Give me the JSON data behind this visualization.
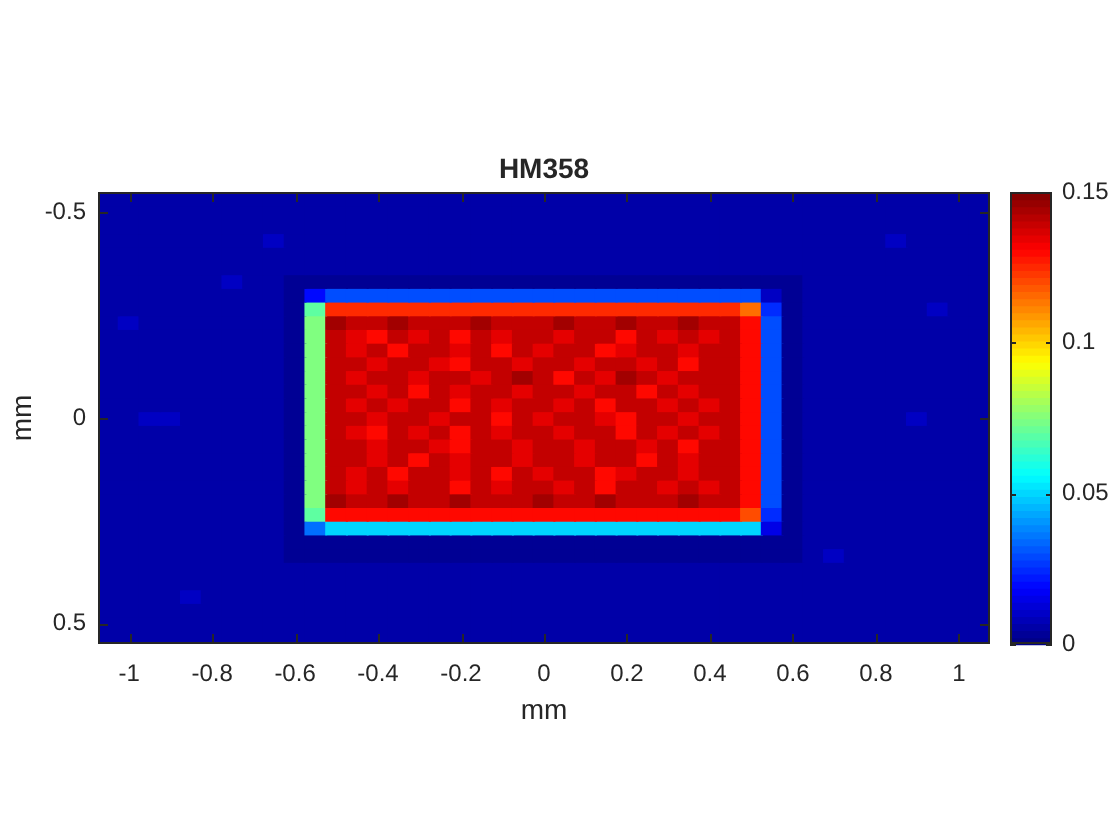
{
  "chart_data": {
    "type": "heatmap",
    "title": "HM358",
    "xlabel": "mm",
    "ylabel": "mm",
    "categories": [
      null,
      "-1",
      null,
      null,
      null,
      "-0.8",
      null,
      null,
      null,
      "-0.6",
      null,
      null,
      null,
      "-0.4",
      null,
      null,
      null,
      "-0.2",
      null,
      null,
      null,
      "0",
      null,
      null,
      null,
      "0.2",
      null,
      null,
      null,
      "0.4",
      null,
      null,
      null,
      "0.6",
      null,
      null,
      null,
      "0.8",
      null,
      null,
      null,
      "1",
      null
    ],
    "y_categories": [
      null,
      "-0.5",
      null,
      null,
      null,
      null,
      null,
      null,
      null,
      null,
      null,
      null,
      null,
      null,
      null,
      null,
      "0",
      null,
      null,
      null,
      null,
      null,
      null,
      null,
      null,
      null,
      null,
      null,
      null,
      null,
      null,
      "0.5",
      null
    ],
    "cells": [
      [
        0.006,
        0.006,
        0.006,
        0.006,
        0.006,
        0.006,
        0.006,
        0.006,
        0.006,
        0.006,
        0.006,
        0.006,
        0.006,
        0.006,
        0.006,
        0.006,
        0.006,
        0.006,
        0.006,
        0.006,
        0.006,
        0.006,
        0.006,
        0.006,
        0.006,
        0.006,
        0.006,
        0.006,
        0.006,
        0.006,
        0.006,
        0.006,
        0.006,
        0.006,
        0.006,
        0.006,
        0.006,
        0.006,
        0.006,
        0.006,
        0.006,
        0.006,
        0.006
      ],
      [
        0.006,
        0.006,
        0.006,
        0.006,
        0.006,
        0.006,
        0.006,
        0.006,
        0.006,
        0.006,
        0.006,
        0.006,
        0.006,
        0.006,
        0.006,
        0.006,
        0.006,
        0.006,
        0.006,
        0.006,
        0.006,
        0.006,
        0.006,
        0.006,
        0.006,
        0.006,
        0.006,
        0.006,
        0.006,
        0.006,
        0.006,
        0.006,
        0.006,
        0.006,
        0.006,
        0.006,
        0.006,
        0.006,
        0.006,
        0.006,
        0.006,
        0.006,
        0.006
      ],
      [
        0.006,
        0.006,
        0.006,
        0.006,
        0.006,
        0.006,
        0.006,
        0.006,
        0.006,
        0.006,
        0.006,
        0.006,
        0.006,
        0.006,
        0.006,
        0.006,
        0.006,
        0.006,
        0.006,
        0.006,
        0.006,
        0.006,
        0.006,
        0.006,
        0.006,
        0.006,
        0.006,
        0.006,
        0.006,
        0.006,
        0.006,
        0.006,
        0.006,
        0.006,
        0.006,
        0.006,
        0.006,
        0.006,
        0.006,
        0.006,
        0.006,
        0.006,
        0.006
      ],
      [
        0.006,
        0.006,
        0.006,
        0.006,
        0.006,
        0.006,
        0.006,
        0.006,
        0.01,
        0.006,
        0.006,
        0.006,
        0.006,
        0.006,
        0.006,
        0.006,
        0.006,
        0.006,
        0.006,
        0.006,
        0.006,
        0.006,
        0.006,
        0.006,
        0.006,
        0.006,
        0.006,
        0.006,
        0.006,
        0.006,
        0.006,
        0.006,
        0.006,
        0.006,
        0.006,
        0.006,
        0.006,
        0.006,
        0.01,
        0.006,
        0.006,
        0.006,
        0.006
      ],
      [
        0.006,
        0.006,
        0.006,
        0.006,
        0.006,
        0.006,
        0.006,
        0.006,
        0.006,
        0.006,
        0.006,
        0.006,
        0.006,
        0.006,
        0.006,
        0.006,
        0.006,
        0.006,
        0.006,
        0.006,
        0.006,
        0.006,
        0.006,
        0.006,
        0.006,
        0.006,
        0.006,
        0.006,
        0.006,
        0.006,
        0.006,
        0.006,
        0.006,
        0.006,
        0.006,
        0.006,
        0.006,
        0.006,
        0.006,
        0.006,
        0.006,
        0.006,
        0.006
      ],
      [
        0.006,
        0.006,
        0.006,
        0.006,
        0.006,
        0.006,
        0.006,
        0.006,
        0.006,
        0.006,
        0.006,
        0.006,
        0.006,
        0.006,
        0.006,
        0.006,
        0.006,
        0.006,
        0.006,
        0.006,
        0.006,
        0.006,
        0.006,
        0.006,
        0.006,
        0.006,
        0.006,
        0.006,
        0.006,
        0.006,
        0.006,
        0.006,
        0.006,
        0.006,
        0.006,
        0.006,
        0.006,
        0.006,
        0.006,
        0.006,
        0.006,
        0.006,
        0.006
      ],
      [
        0.006,
        0.006,
        0.006,
        0.006,
        0.006,
        0.006,
        0.01,
        0.006,
        0.006,
        0.003,
        0.003,
        0.003,
        0.003,
        0.003,
        0.003,
        0.003,
        0.003,
        0.003,
        0.003,
        0.003,
        0.003,
        0.003,
        0.003,
        0.003,
        0.003,
        0.003,
        0.003,
        0.003,
        0.003,
        0.003,
        0.003,
        0.003,
        0.003,
        0.003,
        0.006,
        0.006,
        0.006,
        0.006,
        0.006,
        0.006,
        0.006,
        0.006,
        0.006
      ],
      [
        0.006,
        0.006,
        0.006,
        0.006,
        0.006,
        0.006,
        0.006,
        0.006,
        0.006,
        0.003,
        0.02,
        0.03,
        0.03,
        0.03,
        0.03,
        0.03,
        0.03,
        0.03,
        0.03,
        0.03,
        0.03,
        0.03,
        0.03,
        0.03,
        0.03,
        0.03,
        0.03,
        0.03,
        0.03,
        0.03,
        0.03,
        0.03,
        0.01,
        0.003,
        0.006,
        0.006,
        0.006,
        0.006,
        0.006,
        0.006,
        0.006,
        0.006,
        0.006
      ],
      [
        0.006,
        0.006,
        0.006,
        0.006,
        0.006,
        0.006,
        0.006,
        0.006,
        0.006,
        0.003,
        0.07,
        0.125,
        0.125,
        0.125,
        0.125,
        0.125,
        0.125,
        0.125,
        0.125,
        0.125,
        0.125,
        0.125,
        0.125,
        0.125,
        0.125,
        0.125,
        0.125,
        0.125,
        0.125,
        0.125,
        0.125,
        0.115,
        0.025,
        0.003,
        0.006,
        0.006,
        0.006,
        0.006,
        0.006,
        0.006,
        0.01,
        0.006,
        0.006
      ],
      [
        0.006,
        0.01,
        0.006,
        0.006,
        0.006,
        0.006,
        0.006,
        0.006,
        0.006,
        0.003,
        0.075,
        0.145,
        0.14,
        0.14,
        0.145,
        0.14,
        0.14,
        0.14,
        0.145,
        0.14,
        0.14,
        0.14,
        0.145,
        0.14,
        0.14,
        0.145,
        0.14,
        0.14,
        0.145,
        0.14,
        0.14,
        0.13,
        0.03,
        0.003,
        0.006,
        0.006,
        0.006,
        0.006,
        0.006,
        0.006,
        0.006,
        0.006,
        0.006
      ],
      [
        0.006,
        0.006,
        0.006,
        0.006,
        0.006,
        0.006,
        0.006,
        0.006,
        0.006,
        0.003,
        0.075,
        0.14,
        0.135,
        0.13,
        0.14,
        0.135,
        0.14,
        0.13,
        0.14,
        0.135,
        0.14,
        0.14,
        0.135,
        0.14,
        0.14,
        0.13,
        0.14,
        0.135,
        0.14,
        0.135,
        0.14,
        0.13,
        0.03,
        0.003,
        0.006,
        0.006,
        0.006,
        0.006,
        0.006,
        0.006,
        0.006,
        0.006,
        0.006
      ],
      [
        0.006,
        0.006,
        0.006,
        0.006,
        0.006,
        0.006,
        0.006,
        0.006,
        0.006,
        0.003,
        0.075,
        0.14,
        0.135,
        0.14,
        0.13,
        0.14,
        0.14,
        0.135,
        0.14,
        0.13,
        0.14,
        0.135,
        0.14,
        0.14,
        0.13,
        0.135,
        0.14,
        0.14,
        0.135,
        0.14,
        0.14,
        0.13,
        0.03,
        0.003,
        0.006,
        0.006,
        0.006,
        0.006,
        0.006,
        0.006,
        0.006,
        0.006,
        0.006
      ],
      [
        0.006,
        0.006,
        0.006,
        0.006,
        0.006,
        0.006,
        0.006,
        0.006,
        0.006,
        0.003,
        0.075,
        0.14,
        0.14,
        0.135,
        0.14,
        0.14,
        0.135,
        0.13,
        0.14,
        0.14,
        0.135,
        0.14,
        0.14,
        0.135,
        0.14,
        0.14,
        0.135,
        0.14,
        0.13,
        0.14,
        0.14,
        0.13,
        0.03,
        0.003,
        0.006,
        0.006,
        0.006,
        0.006,
        0.006,
        0.006,
        0.006,
        0.006,
        0.006
      ],
      [
        0.006,
        0.006,
        0.006,
        0.006,
        0.006,
        0.006,
        0.006,
        0.006,
        0.006,
        0.003,
        0.075,
        0.14,
        0.135,
        0.14,
        0.14,
        0.135,
        0.14,
        0.14,
        0.135,
        0.14,
        0.145,
        0.14,
        0.13,
        0.14,
        0.135,
        0.145,
        0.14,
        0.135,
        0.14,
        0.14,
        0.14,
        0.13,
        0.03,
        0.003,
        0.006,
        0.006,
        0.006,
        0.006,
        0.006,
        0.006,
        0.006,
        0.006,
        0.006
      ],
      [
        0.006,
        0.006,
        0.006,
        0.006,
        0.006,
        0.006,
        0.006,
        0.006,
        0.006,
        0.003,
        0.075,
        0.14,
        0.14,
        0.135,
        0.14,
        0.13,
        0.14,
        0.135,
        0.14,
        0.14,
        0.135,
        0.14,
        0.14,
        0.135,
        0.14,
        0.14,
        0.13,
        0.14,
        0.135,
        0.14,
        0.14,
        0.13,
        0.03,
        0.003,
        0.006,
        0.006,
        0.006,
        0.006,
        0.006,
        0.006,
        0.006,
        0.006,
        0.006
      ],
      [
        0.006,
        0.006,
        0.006,
        0.006,
        0.006,
        0.006,
        0.006,
        0.006,
        0.006,
        0.003,
        0.075,
        0.14,
        0.135,
        0.14,
        0.135,
        0.14,
        0.14,
        0.13,
        0.14,
        0.135,
        0.14,
        0.14,
        0.135,
        0.14,
        0.13,
        0.14,
        0.14,
        0.135,
        0.14,
        0.135,
        0.14,
        0.13,
        0.03,
        0.003,
        0.006,
        0.006,
        0.006,
        0.006,
        0.006,
        0.006,
        0.006,
        0.006,
        0.006
      ],
      [
        0.006,
        0.006,
        0.01,
        0.01,
        0.006,
        0.006,
        0.006,
        0.006,
        0.006,
        0.003,
        0.075,
        0.14,
        0.14,
        0.135,
        0.14,
        0.14,
        0.135,
        0.14,
        0.14,
        0.13,
        0.14,
        0.135,
        0.14,
        0.14,
        0.135,
        0.13,
        0.14,
        0.14,
        0.135,
        0.14,
        0.14,
        0.13,
        0.03,
        0.003,
        0.006,
        0.006,
        0.006,
        0.006,
        0.006,
        0.01,
        0.006,
        0.006,
        0.006
      ],
      [
        0.006,
        0.006,
        0.006,
        0.006,
        0.006,
        0.006,
        0.006,
        0.006,
        0.006,
        0.003,
        0.075,
        0.14,
        0.135,
        0.13,
        0.14,
        0.135,
        0.14,
        0.13,
        0.14,
        0.135,
        0.14,
        0.14,
        0.135,
        0.14,
        0.14,
        0.13,
        0.14,
        0.135,
        0.14,
        0.135,
        0.14,
        0.13,
        0.03,
        0.003,
        0.006,
        0.006,
        0.006,
        0.006,
        0.006,
        0.006,
        0.006,
        0.006,
        0.006
      ],
      [
        0.006,
        0.006,
        0.006,
        0.006,
        0.006,
        0.006,
        0.006,
        0.006,
        0.006,
        0.003,
        0.075,
        0.14,
        0.14,
        0.135,
        0.14,
        0.14,
        0.135,
        0.13,
        0.14,
        0.14,
        0.135,
        0.14,
        0.14,
        0.135,
        0.14,
        0.14,
        0.135,
        0.14,
        0.13,
        0.14,
        0.14,
        0.13,
        0.03,
        0.003,
        0.006,
        0.006,
        0.006,
        0.006,
        0.006,
        0.006,
        0.006,
        0.006,
        0.006
      ],
      [
        0.006,
        0.006,
        0.006,
        0.006,
        0.006,
        0.006,
        0.006,
        0.006,
        0.006,
        0.003,
        0.075,
        0.14,
        0.14,
        0.135,
        0.14,
        0.13,
        0.14,
        0.135,
        0.14,
        0.14,
        0.135,
        0.14,
        0.14,
        0.135,
        0.14,
        0.14,
        0.13,
        0.14,
        0.135,
        0.14,
        0.14,
        0.13,
        0.03,
        0.003,
        0.006,
        0.006,
        0.006,
        0.006,
        0.006,
        0.006,
        0.006,
        0.006,
        0.006
      ],
      [
        0.006,
        0.006,
        0.006,
        0.006,
        0.006,
        0.006,
        0.006,
        0.006,
        0.006,
        0.003,
        0.075,
        0.14,
        0.135,
        0.14,
        0.13,
        0.14,
        0.14,
        0.135,
        0.14,
        0.13,
        0.14,
        0.135,
        0.14,
        0.14,
        0.13,
        0.135,
        0.14,
        0.14,
        0.135,
        0.14,
        0.14,
        0.13,
        0.03,
        0.003,
        0.006,
        0.006,
        0.006,
        0.006,
        0.006,
        0.006,
        0.006,
        0.006,
        0.006
      ],
      [
        0.006,
        0.006,
        0.006,
        0.006,
        0.006,
        0.006,
        0.006,
        0.006,
        0.006,
        0.003,
        0.075,
        0.14,
        0.135,
        0.14,
        0.135,
        0.14,
        0.14,
        0.13,
        0.14,
        0.135,
        0.14,
        0.14,
        0.135,
        0.14,
        0.13,
        0.14,
        0.14,
        0.135,
        0.14,
        0.135,
        0.14,
        0.13,
        0.03,
        0.003,
        0.006,
        0.006,
        0.006,
        0.006,
        0.006,
        0.006,
        0.006,
        0.006,
        0.006
      ],
      [
        0.006,
        0.006,
        0.006,
        0.006,
        0.006,
        0.006,
        0.006,
        0.006,
        0.006,
        0.003,
        0.075,
        0.145,
        0.14,
        0.14,
        0.145,
        0.14,
        0.14,
        0.145,
        0.14,
        0.14,
        0.14,
        0.145,
        0.14,
        0.14,
        0.145,
        0.14,
        0.14,
        0.14,
        0.145,
        0.14,
        0.14,
        0.13,
        0.03,
        0.003,
        0.006,
        0.006,
        0.006,
        0.006,
        0.006,
        0.006,
        0.006,
        0.006,
        0.006
      ],
      [
        0.006,
        0.006,
        0.006,
        0.006,
        0.006,
        0.006,
        0.006,
        0.006,
        0.006,
        0.003,
        0.07,
        0.13,
        0.13,
        0.13,
        0.13,
        0.13,
        0.13,
        0.13,
        0.13,
        0.13,
        0.13,
        0.13,
        0.13,
        0.13,
        0.13,
        0.13,
        0.13,
        0.13,
        0.13,
        0.13,
        0.13,
        0.12,
        0.025,
        0.003,
        0.006,
        0.006,
        0.006,
        0.006,
        0.006,
        0.006,
        0.006,
        0.006,
        0.006
      ],
      [
        0.006,
        0.006,
        0.006,
        0.006,
        0.006,
        0.006,
        0.006,
        0.006,
        0.006,
        0.003,
        0.035,
        0.05,
        0.05,
        0.05,
        0.05,
        0.05,
        0.05,
        0.05,
        0.05,
        0.05,
        0.05,
        0.05,
        0.05,
        0.05,
        0.05,
        0.05,
        0.05,
        0.05,
        0.05,
        0.05,
        0.05,
        0.05,
        0.015,
        0.003,
        0.006,
        0.006,
        0.006,
        0.006,
        0.006,
        0.006,
        0.006,
        0.006,
        0.006
      ],
      [
        0.006,
        0.006,
        0.006,
        0.006,
        0.006,
        0.006,
        0.006,
        0.006,
        0.006,
        0.003,
        0.003,
        0.003,
        0.003,
        0.003,
        0.003,
        0.003,
        0.003,
        0.003,
        0.003,
        0.003,
        0.003,
        0.003,
        0.003,
        0.003,
        0.003,
        0.003,
        0.003,
        0.003,
        0.003,
        0.003,
        0.003,
        0.003,
        0.003,
        0.003,
        0.006,
        0.006,
        0.006,
        0.006,
        0.006,
        0.006,
        0.006,
        0.006,
        0.006
      ],
      [
        0.006,
        0.006,
        0.006,
        0.006,
        0.006,
        0.006,
        0.006,
        0.006,
        0.006,
        0.003,
        0.003,
        0.003,
        0.003,
        0.003,
        0.003,
        0.003,
        0.003,
        0.003,
        0.003,
        0.003,
        0.003,
        0.003,
        0.003,
        0.003,
        0.003,
        0.003,
        0.003,
        0.003,
        0.003,
        0.003,
        0.003,
        0.003,
        0.003,
        0.003,
        0.006,
        0.01,
        0.006,
        0.006,
        0.006,
        0.006,
        0.006,
        0.006,
        0.006
      ],
      [
        0.006,
        0.006,
        0.006,
        0.006,
        0.006,
        0.006,
        0.006,
        0.006,
        0.006,
        0.006,
        0.006,
        0.006,
        0.006,
        0.006,
        0.006,
        0.006,
        0.006,
        0.006,
        0.006,
        0.006,
        0.006,
        0.006,
        0.006,
        0.006,
        0.006,
        0.006,
        0.006,
        0.006,
        0.006,
        0.006,
        0.006,
        0.006,
        0.006,
        0.006,
        0.006,
        0.006,
        0.006,
        0.006,
        0.006,
        0.006,
        0.006,
        0.006,
        0.006
      ],
      [
        0.006,
        0.006,
        0.006,
        0.006,
        0.006,
        0.006,
        0.006,
        0.006,
        0.006,
        0.006,
        0.006,
        0.006,
        0.006,
        0.006,
        0.006,
        0.006,
        0.006,
        0.006,
        0.006,
        0.006,
        0.006,
        0.006,
        0.006,
        0.006,
        0.006,
        0.006,
        0.006,
        0.006,
        0.006,
        0.006,
        0.006,
        0.006,
        0.006,
        0.006,
        0.006,
        0.006,
        0.006,
        0.006,
        0.006,
        0.006,
        0.006,
        0.006,
        0.006
      ],
      [
        0.006,
        0.006,
        0.006,
        0.006,
        0.01,
        0.006,
        0.006,
        0.006,
        0.006,
        0.006,
        0.006,
        0.006,
        0.006,
        0.006,
        0.006,
        0.006,
        0.006,
        0.006,
        0.006,
        0.006,
        0.006,
        0.006,
        0.006,
        0.006,
        0.006,
        0.006,
        0.006,
        0.006,
        0.006,
        0.006,
        0.006,
        0.006,
        0.006,
        0.006,
        0.006,
        0.006,
        0.006,
        0.006,
        0.006,
        0.006,
        0.006,
        0.006,
        0.006
      ],
      [
        0.006,
        0.006,
        0.006,
        0.006,
        0.006,
        0.006,
        0.006,
        0.006,
        0.006,
        0.006,
        0.006,
        0.006,
        0.006,
        0.006,
        0.006,
        0.006,
        0.006,
        0.006,
        0.006,
        0.006,
        0.006,
        0.006,
        0.006,
        0.006,
        0.006,
        0.006,
        0.006,
        0.006,
        0.006,
        0.006,
        0.006,
        0.006,
        0.006,
        0.006,
        0.006,
        0.006,
        0.006,
        0.006,
        0.006,
        0.006,
        0.006,
        0.006,
        0.006
      ],
      [
        0.006,
        0.006,
        0.006,
        0.006,
        0.006,
        0.006,
        0.006,
        0.006,
        0.006,
        0.006,
        0.006,
        0.006,
        0.006,
        0.006,
        0.006,
        0.006,
        0.006,
        0.006,
        0.006,
        0.006,
        0.006,
        0.006,
        0.006,
        0.006,
        0.006,
        0.006,
        0.006,
        0.006,
        0.006,
        0.006,
        0.006,
        0.006,
        0.006,
        0.006,
        0.006,
        0.006,
        0.006,
        0.006,
        0.006,
        0.006,
        0.006,
        0.006,
        0.006
      ],
      [
        0.006,
        0.006,
        0.006,
        0.006,
        0.006,
        0.006,
        0.006,
        0.006,
        0.006,
        0.006,
        0.006,
        0.006,
        0.006,
        0.006,
        0.006,
        0.006,
        0.006,
        0.006,
        0.006,
        0.006,
        0.006,
        0.006,
        0.006,
        0.006,
        0.006,
        0.006,
        0.006,
        0.006,
        0.006,
        0.006,
        0.006,
        0.006,
        0.006,
        0.006,
        0.006,
        0.006,
        0.006,
        0.006,
        0.006,
        0.006,
        0.006,
        0.006,
        0.006
      ]
    ],
    "clim": [
      0,
      0.15
    ],
    "cticks": [
      0,
      0.05,
      0.1,
      0.15
    ]
  }
}
